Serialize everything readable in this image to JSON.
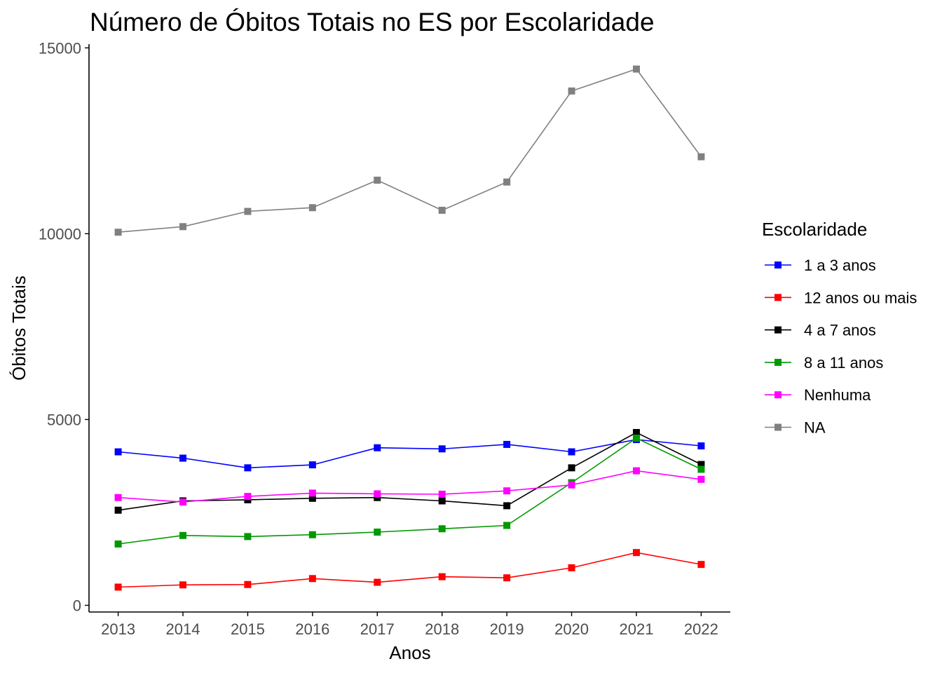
{
  "chart_data": {
    "type": "line",
    "title": "Número de Óbitos Totais no ES por Escolaridade",
    "xlabel": "Anos",
    "ylabel": "Óbitos Totais",
    "x": [
      2013,
      2014,
      2015,
      2016,
      2017,
      2018,
      2019,
      2020,
      2021,
      2022
    ],
    "x_tick_labels": [
      "2013",
      "2014",
      "2015",
      "2016",
      "2017",
      "2018",
      "2019",
      "2020",
      "2021",
      "2022"
    ],
    "y_ticks": [
      0,
      5000,
      10000,
      15000
    ],
    "y_tick_labels": [
      "0",
      "5000",
      "10000",
      "15000"
    ],
    "ylim": [
      -180,
      15100
    ],
    "grid": false,
    "legend": {
      "title": "Escolaridade",
      "position": "right"
    },
    "series": [
      {
        "name": "1 a 3 anos",
        "color": "#0000ff",
        "values": [
          4130,
          3960,
          3700,
          3780,
          4240,
          4210,
          4330,
          4130,
          4460,
          4290
        ]
      },
      {
        "name": "12 anos ou mais",
        "color": "#ff0000",
        "values": [
          490,
          550,
          560,
          720,
          620,
          770,
          740,
          1010,
          1420,
          1100
        ]
      },
      {
        "name": "4 a 7 anos",
        "color": "#000000",
        "values": [
          2560,
          2810,
          2840,
          2880,
          2900,
          2810,
          2680,
          3700,
          4650,
          3790
        ]
      },
      {
        "name": "8 a 11 anos",
        "color": "#009900",
        "values": [
          1650,
          1880,
          1850,
          1900,
          1970,
          2060,
          2150,
          3300,
          4500,
          3660
        ]
      },
      {
        "name": "Nenhuma",
        "color": "#ff00ff",
        "values": [
          2900,
          2780,
          2930,
          3020,
          3000,
          2990,
          3080,
          3240,
          3620,
          3390
        ]
      },
      {
        "name": "NA",
        "color": "#808080",
        "values": [
          10040,
          10190,
          10600,
          10700,
          11440,
          10630,
          11390,
          13840,
          14430,
          12070
        ]
      }
    ]
  }
}
